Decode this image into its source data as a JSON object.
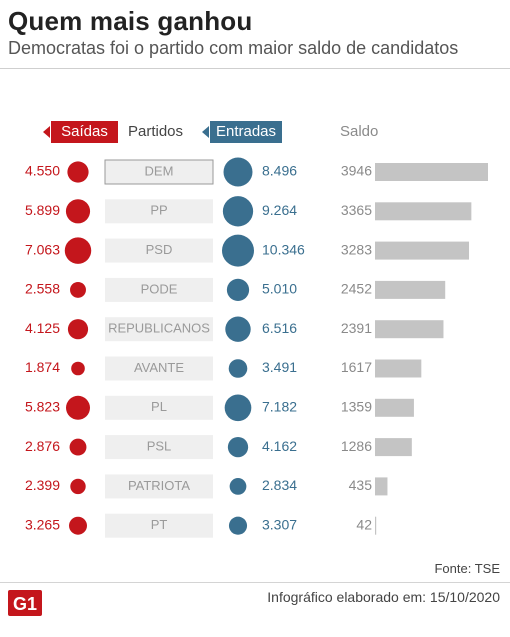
{
  "header": {
    "title": "Quem mais ganhou",
    "subtitle": "Democratas foi o partido com maior saldo de candidatos"
  },
  "legend": {
    "out_label": "Saídas",
    "party_label": "Partidos",
    "in_label": "Entradas",
    "saldo_label": "Saldo"
  },
  "colors": {
    "out": "#c4161c",
    "in": "#3a6f8f",
    "saldo_bar": "#c4c4c4",
    "party_box": "#efefef"
  },
  "chart_data": {
    "type": "table",
    "columns": [
      "Saídas",
      "Partidos",
      "Entradas",
      "Saldo"
    ],
    "rows": [
      {
        "party": "DEM",
        "out": "4.550",
        "in": "8.496",
        "saldo": "3946",
        "out_value": 4550,
        "in_value": 8496,
        "saldo_value": 3946
      },
      {
        "party": "PP",
        "out": "5.899",
        "in": "9.264",
        "saldo": "3365",
        "out_value": 5899,
        "in_value": 9264,
        "saldo_value": 3365
      },
      {
        "party": "PSD",
        "out": "7.063",
        "in": "10.346",
        "saldo": "3283",
        "out_value": 7063,
        "in_value": 10346,
        "saldo_value": 3283
      },
      {
        "party": "PODE",
        "out": "2.558",
        "in": "5.010",
        "saldo": "2452",
        "out_value": 2558,
        "in_value": 5010,
        "saldo_value": 2452
      },
      {
        "party": "REPUBLICANOS",
        "out": "4.125",
        "in": "6.516",
        "saldo": "2391",
        "out_value": 4125,
        "in_value": 6516,
        "saldo_value": 2391
      },
      {
        "party": "AVANTE",
        "out": "1.874",
        "in": "3.491",
        "saldo": "1617",
        "out_value": 1874,
        "in_value": 3491,
        "saldo_value": 1617
      },
      {
        "party": "PL",
        "out": "5.823",
        "in": "7.182",
        "saldo": "1359",
        "out_value": 5823,
        "in_value": 7182,
        "saldo_value": 1359
      },
      {
        "party": "PSL",
        "out": "2.876",
        "in": "4.162",
        "saldo": "1286",
        "out_value": 2876,
        "in_value": 4162,
        "saldo_value": 1286
      },
      {
        "party": "PATRIOTA",
        "out": "2.399",
        "in": "2.834",
        "saldo": "435",
        "out_value": 2399,
        "in_value": 2834,
        "saldo_value": 435
      },
      {
        "party": "PT",
        "out": "3.265",
        "in": "3.307",
        "saldo": "42",
        "out_value": 3265,
        "in_value": 3307,
        "saldo_value": 42
      }
    ],
    "highlight_party": "DEM"
  },
  "footer": {
    "source": "Fonte: TSE",
    "credit": "Infográfico elaborado em: 15/10/2020",
    "logo_text": "G1"
  }
}
